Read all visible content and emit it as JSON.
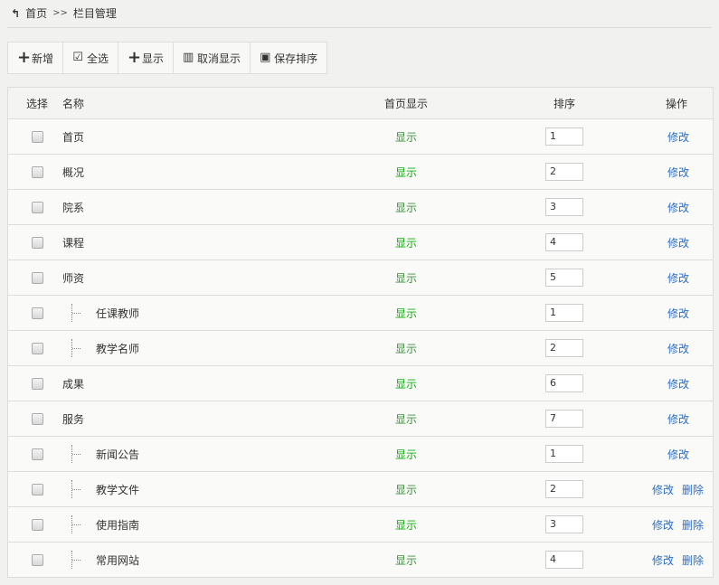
{
  "breadcrumb": {
    "home": "首页",
    "sep": ">>",
    "current": "栏目管理"
  },
  "toolbar": [
    {
      "icon": "plus-icon",
      "label": "新增"
    },
    {
      "icon": "checkbox-icon",
      "label": "全选"
    },
    {
      "icon": "plus-icon",
      "label": "显示"
    },
    {
      "icon": "trash-icon",
      "label": "取消显示"
    },
    {
      "icon": "save-icon",
      "label": "保存排序"
    }
  ],
  "columns": {
    "select": "选择",
    "name": "名称",
    "show": "首页显示",
    "order": "排序",
    "ops": "操作"
  },
  "colors": {
    "show_dim": "#3f8f3f",
    "show_bright": "#11aa11",
    "link": "#2a6ec8"
  },
  "rows": [
    {
      "name": "首页",
      "child": false,
      "show": "显示",
      "order": "1",
      "edit": "修改"
    },
    {
      "name": "概况",
      "child": false,
      "show": "显示",
      "order": "2",
      "edit": "修改"
    },
    {
      "name": "院系",
      "child": false,
      "show": "显示",
      "order": "3",
      "edit": "修改"
    },
    {
      "name": "课程",
      "child": false,
      "show": "显示",
      "order": "4",
      "edit": "修改"
    },
    {
      "name": "师资",
      "child": false,
      "show": "显示",
      "order": "5",
      "edit": "修改"
    },
    {
      "name": "任课教师",
      "child": true,
      "show": "显示",
      "order": "1",
      "edit": "修改"
    },
    {
      "name": "教学名师",
      "child": true,
      "show": "显示",
      "order": "2",
      "edit": "修改"
    },
    {
      "name": "成果",
      "child": false,
      "show": "显示",
      "order": "6",
      "edit": "修改"
    },
    {
      "name": "服务",
      "child": false,
      "show": "显示",
      "order": "7",
      "edit": "修改"
    },
    {
      "name": "新闻公告",
      "child": true,
      "show": "显示",
      "order": "1",
      "edit": "修改"
    },
    {
      "name": "教学文件",
      "child": true,
      "show": "显示",
      "order": "2",
      "edit": "修改",
      "delete": "删除"
    },
    {
      "name": "使用指南",
      "child": true,
      "show": "显示",
      "order": "3",
      "edit": "修改",
      "delete": "删除"
    },
    {
      "name": "常用网站",
      "child": true,
      "show": "显示",
      "order": "4",
      "edit": "修改",
      "delete": "删除"
    }
  ]
}
